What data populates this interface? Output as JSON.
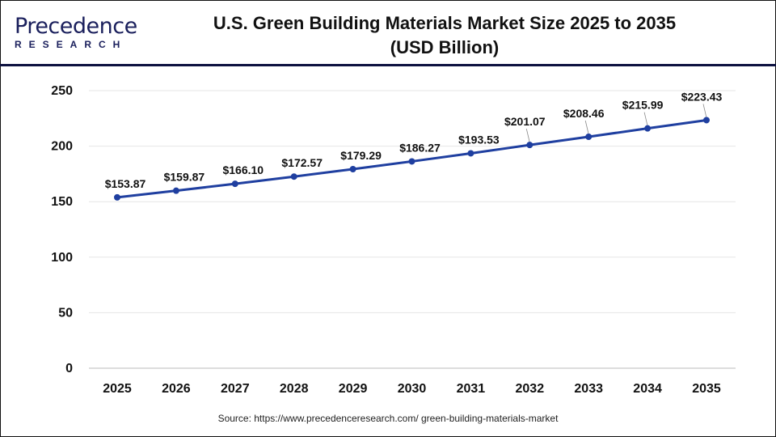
{
  "logo": {
    "line1": "Precedence",
    "line2": "RESEARCH"
  },
  "title_line1": "U.S. Green Building Materials Market Size 2025 to 2035",
  "title_line2": "(USD Billion)",
  "source": "Source: https://www.precedenceresearch.com/ green-building-materials-market",
  "colors": {
    "line": "#1f3fa0",
    "grid": "#e6e6e6",
    "rule": "#0e1240"
  },
  "chart_data": {
    "type": "line",
    "title": "U.S. Green Building Materials Market Size 2025 to 2035 (USD Billion)",
    "categories": [
      "2025",
      "2026",
      "2027",
      "2028",
      "2029",
      "2030",
      "2031",
      "2032",
      "2033",
      "2034",
      "2035"
    ],
    "values": [
      153.87,
      159.87,
      166.1,
      172.57,
      179.29,
      186.27,
      193.53,
      201.07,
      208.46,
      215.99,
      223.43
    ],
    "labels": [
      "$153.87",
      "$159.87",
      "$166.10",
      "$172.57",
      "$179.29",
      "$186.27",
      "$193.53",
      "$201.07",
      "$208.46",
      "$215.99",
      "$223.43"
    ],
    "yticks": [
      "0",
      "50",
      "100",
      "150",
      "200",
      "250"
    ],
    "ylim": [
      0,
      250
    ],
    "grid": true,
    "legend": "none"
  }
}
